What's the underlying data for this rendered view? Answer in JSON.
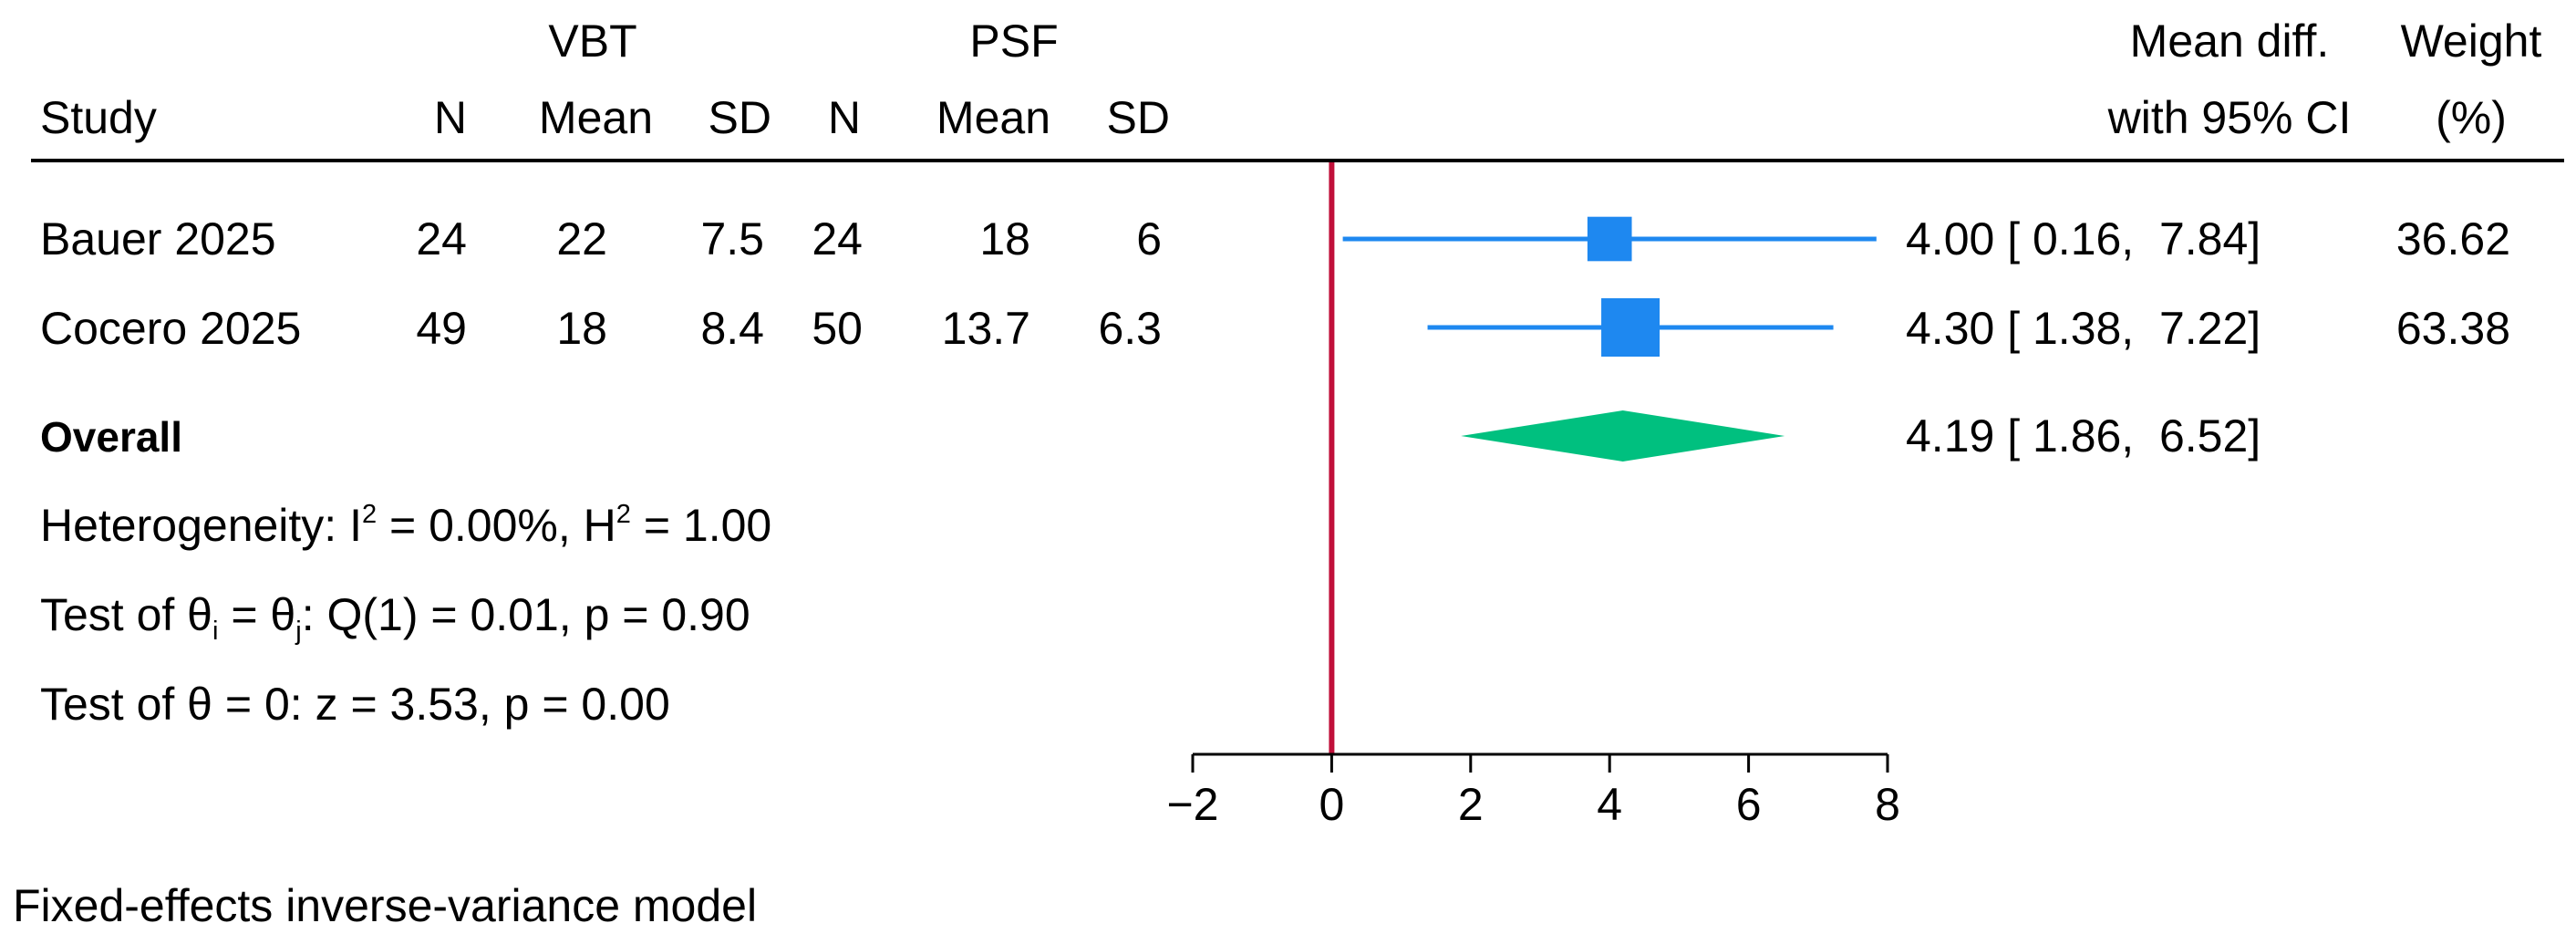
{
  "headers": {
    "vbt": "VBT",
    "psf": "PSF",
    "study": "Study",
    "n": "N",
    "mean": "Mean",
    "sd": "SD",
    "mean_diff_line1": "Mean diff.",
    "mean_diff_line2": "with 95% CI",
    "weight_line1": "Weight",
    "weight_line2": "(%)"
  },
  "studies": [
    {
      "study": "Bauer 2025",
      "vbt_n": "24",
      "vbt_mean": "22",
      "vbt_sd": "7.5",
      "psf_n": "24",
      "psf_mean": "18",
      "psf_sd": "6",
      "ci_text": "4.00 [ 0.16,  7.84]",
      "weight": "36.62"
    },
    {
      "study": "Cocero 2025",
      "vbt_n": "49",
      "vbt_mean": "18",
      "vbt_sd": "8.4",
      "psf_n": "50",
      "psf_mean": "13.7",
      "psf_sd": "6.3",
      "ci_text": "4.30 [ 1.38,  7.22]",
      "weight": "63.38"
    }
  ],
  "overall": {
    "label": "Overall",
    "ci_text": "4.19 [ 1.86,  6.52]"
  },
  "stats": {
    "het_prefix": "Heterogeneity: I",
    "het_sup1": "2",
    "het_mid": " = 0.00%, H",
    "het_sup2": "2",
    "het_end": " = 1.00",
    "q_prefix": "Test of θ",
    "q_sub1": "i",
    "q_mid": " = θ",
    "q_sub2": "j",
    "q_end": ": Q(1) = 0.01, p = 0.90",
    "z_line": "Test of θ = 0: z = 3.53, p = 0.00"
  },
  "footnote": "Fixed-effects inverse-variance model",
  "colors": {
    "study_marker": "#1e88f0",
    "overall_diamond": "#00c07f",
    "null_line": "#c0103a",
    "axis": "#000000"
  },
  "chart_data": {
    "type": "forest",
    "xlim": [
      -2,
      8
    ],
    "ticks": [
      -2,
      0,
      2,
      4,
      6,
      8
    ],
    "tick_labels": [
      "−2",
      "0",
      "2",
      "4",
      "6",
      "8"
    ],
    "null_value": 0,
    "studies": [
      {
        "name": "Bauer 2025",
        "estimate": 4.0,
        "ci_low": 0.16,
        "ci_high": 7.84,
        "weight": 36.62
      },
      {
        "name": "Cocero 2025",
        "estimate": 4.3,
        "ci_low": 1.38,
        "ci_high": 7.22,
        "weight": 63.38
      }
    ],
    "overall": {
      "name": "Overall",
      "estimate": 4.19,
      "ci_low": 1.86,
      "ci_high": 6.52
    }
  }
}
